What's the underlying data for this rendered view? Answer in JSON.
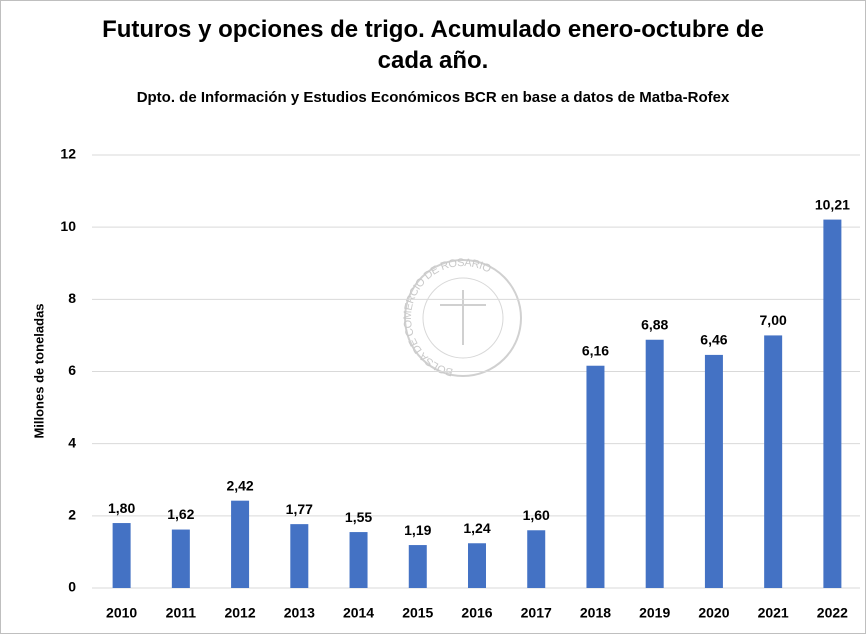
{
  "chart_data": {
    "type": "bar",
    "title": "Futuros y opciones de trigo. Acumulado enero-octubre de cada año.",
    "subtitle": "Dpto. de Información y Estudios Económicos BCR en base a datos de Matba-Rofex",
    "y_label": "Millones de toneladas",
    "watermark": "BOLSA DE COMERCIO DE ROSARIO",
    "categories": [
      "2010",
      "2011",
      "2012",
      "2013",
      "2014",
      "2015",
      "2016",
      "2017",
      "2018",
      "2019",
      "2020",
      "2021",
      "2022"
    ],
    "values": [
      1.8,
      1.62,
      2.42,
      1.77,
      1.55,
      1.19,
      1.24,
      1.6,
      6.16,
      6.88,
      6.46,
      7.0,
      10.21
    ],
    "value_labels": [
      "1,80",
      "1,62",
      "2,42",
      "1,77",
      "1,55",
      "1,19",
      "1,24",
      "1,60",
      "6,16",
      "6,88",
      "6,46",
      "7,00",
      "10,21"
    ],
    "color": "#4472c4",
    "ylim": [
      0,
      12
    ],
    "yticks": [
      0,
      2,
      4,
      6,
      8,
      10,
      12
    ],
    "grid": true
  }
}
